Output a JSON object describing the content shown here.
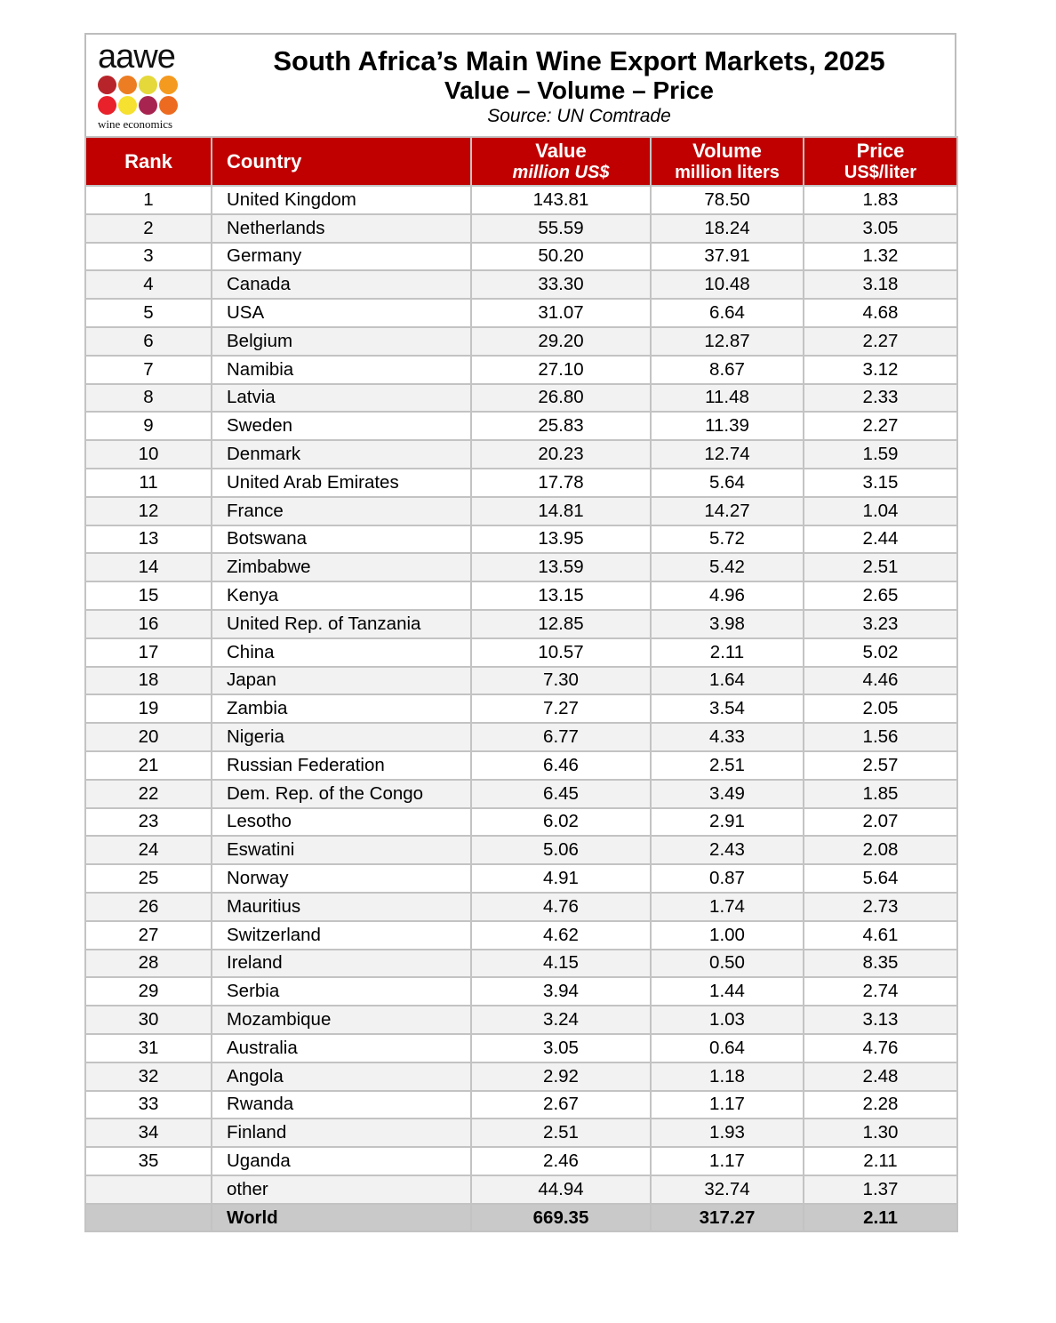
{
  "logo": {
    "brand": "aawe",
    "tagline": "wine economics",
    "dot_colors": [
      "#B7242A",
      "#EC7D23",
      "#E5D83A",
      "#F49A1F",
      "#E8212B",
      "#F6E030",
      "#A82450",
      "#ED6B21"
    ]
  },
  "header": {
    "title": "South Africa’s Main Wine Export Markets, 2025",
    "subtitle": "Value – Volume – Price",
    "source": "Source: UN Comtrade"
  },
  "columns": {
    "rank": {
      "label": "Rank"
    },
    "country": {
      "label": "Country"
    },
    "value": {
      "label": "Value",
      "sub": "million US$"
    },
    "volume": {
      "label": "Volume",
      "sub": "million liters"
    },
    "price": {
      "label": "Price",
      "sub": "US$/liter"
    }
  },
  "colors": {
    "header_red": "#C00000",
    "stripe_gray": "#F2F2F2",
    "world_row_gray": "#C9C9C9",
    "border_gray": "#C3C3C3"
  },
  "chart_data": {
    "type": "table",
    "title": "South Africa’s Main Wine Export Markets, 2025",
    "subtitle": "Value – Volume – Price",
    "source": "Source: UN Comtrade",
    "columns": [
      "Rank",
      "Country",
      "Value (million US$)",
      "Volume (million liters)",
      "Price (US$/liter)"
    ],
    "rows": [
      {
        "rank": "1",
        "country": "United Kingdom",
        "value": "143.81",
        "volume": "78.50",
        "price": "1.83"
      },
      {
        "rank": "2",
        "country": "Netherlands",
        "value": "55.59",
        "volume": "18.24",
        "price": "3.05"
      },
      {
        "rank": "3",
        "country": "Germany",
        "value": "50.20",
        "volume": "37.91",
        "price": "1.32"
      },
      {
        "rank": "4",
        "country": "Canada",
        "value": "33.30",
        "volume": "10.48",
        "price": "3.18"
      },
      {
        "rank": "5",
        "country": "USA",
        "value": "31.07",
        "volume": "6.64",
        "price": "4.68"
      },
      {
        "rank": "6",
        "country": "Belgium",
        "value": "29.20",
        "volume": "12.87",
        "price": "2.27"
      },
      {
        "rank": "7",
        "country": "Namibia",
        "value": "27.10",
        "volume": "8.67",
        "price": "3.12"
      },
      {
        "rank": "8",
        "country": "Latvia",
        "value": "26.80",
        "volume": "11.48",
        "price": "2.33"
      },
      {
        "rank": "9",
        "country": "Sweden",
        "value": "25.83",
        "volume": "11.39",
        "price": "2.27"
      },
      {
        "rank": "10",
        "country": "Denmark",
        "value": "20.23",
        "volume": "12.74",
        "price": "1.59"
      },
      {
        "rank": "11",
        "country": "United Arab Emirates",
        "value": "17.78",
        "volume": "5.64",
        "price": "3.15"
      },
      {
        "rank": "12",
        "country": "France",
        "value": "14.81",
        "volume": "14.27",
        "price": "1.04"
      },
      {
        "rank": "13",
        "country": "Botswana",
        "value": "13.95",
        "volume": "5.72",
        "price": "2.44"
      },
      {
        "rank": "14",
        "country": "Zimbabwe",
        "value": "13.59",
        "volume": "5.42",
        "price": "2.51"
      },
      {
        "rank": "15",
        "country": "Kenya",
        "value": "13.15",
        "volume": "4.96",
        "price": "2.65"
      },
      {
        "rank": "16",
        "country": "United Rep. of Tanzania",
        "value": "12.85",
        "volume": "3.98",
        "price": "3.23"
      },
      {
        "rank": "17",
        "country": "China",
        "value": "10.57",
        "volume": "2.11",
        "price": "5.02"
      },
      {
        "rank": "18",
        "country": "Japan",
        "value": "7.30",
        "volume": "1.64",
        "price": "4.46"
      },
      {
        "rank": "19",
        "country": "Zambia",
        "value": "7.27",
        "volume": "3.54",
        "price": "2.05"
      },
      {
        "rank": "20",
        "country": "Nigeria",
        "value": "6.77",
        "volume": "4.33",
        "price": "1.56"
      },
      {
        "rank": "21",
        "country": "Russian Federation",
        "value": "6.46",
        "volume": "2.51",
        "price": "2.57"
      },
      {
        "rank": "22",
        "country": "Dem. Rep. of the Congo",
        "value": "6.45",
        "volume": "3.49",
        "price": "1.85"
      },
      {
        "rank": "23",
        "country": "Lesotho",
        "value": "6.02",
        "volume": "2.91",
        "price": "2.07"
      },
      {
        "rank": "24",
        "country": "Eswatini",
        "value": "5.06",
        "volume": "2.43",
        "price": "2.08"
      },
      {
        "rank": "25",
        "country": "Norway",
        "value": "4.91",
        "volume": "0.87",
        "price": "5.64"
      },
      {
        "rank": "26",
        "country": "Mauritius",
        "value": "4.76",
        "volume": "1.74",
        "price": "2.73"
      },
      {
        "rank": "27",
        "country": "Switzerland",
        "value": "4.62",
        "volume": "1.00",
        "price": "4.61"
      },
      {
        "rank": "28",
        "country": "Ireland",
        "value": "4.15",
        "volume": "0.50",
        "price": "8.35"
      },
      {
        "rank": "29",
        "country": "Serbia",
        "value": "3.94",
        "volume": "1.44",
        "price": "2.74"
      },
      {
        "rank": "30",
        "country": "Mozambique",
        "value": "3.24",
        "volume": "1.03",
        "price": "3.13"
      },
      {
        "rank": "31",
        "country": "Australia",
        "value": "3.05",
        "volume": "0.64",
        "price": "4.76"
      },
      {
        "rank": "32",
        "country": "Angola",
        "value": "2.92",
        "volume": "1.18",
        "price": "2.48"
      },
      {
        "rank": "33",
        "country": "Rwanda",
        "value": "2.67",
        "volume": "1.17",
        "price": "2.28"
      },
      {
        "rank": "34",
        "country": "Finland",
        "value": "2.51",
        "volume": "1.93",
        "price": "1.30"
      },
      {
        "rank": "35",
        "country": "Uganda",
        "value": "2.46",
        "volume": "1.17",
        "price": "2.11"
      },
      {
        "rank": "",
        "country": "other",
        "value": "44.94",
        "volume": "32.74",
        "price": "1.37"
      },
      {
        "rank": "",
        "country": "World",
        "value": "669.35",
        "volume": "317.27",
        "price": "2.11",
        "is_total": true
      }
    ]
  }
}
